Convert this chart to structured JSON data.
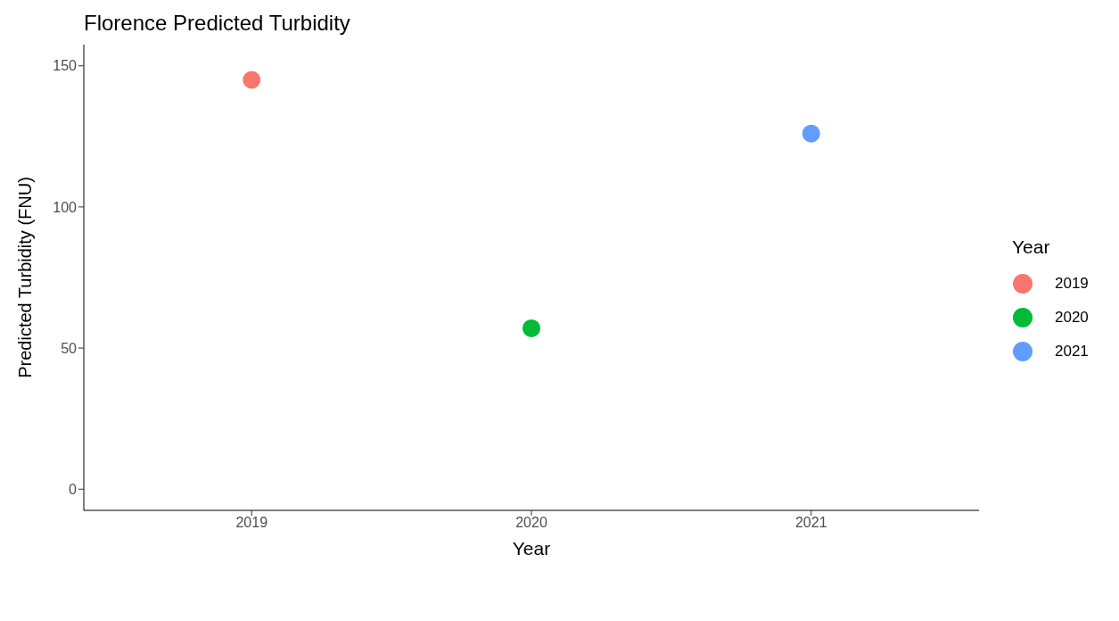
{
  "chart_data": {
    "type": "scatter",
    "title": "Florence Predicted Turbidity",
    "xlabel": "Year",
    "ylabel": "Predicted Turbidity (FNU)",
    "legend_title": "Year",
    "categories": [
      "2019",
      "2020",
      "2021"
    ],
    "series": [
      {
        "name": "2019",
        "color": "#f8766d",
        "values": [
          145,
          null,
          null
        ]
      },
      {
        "name": "2020",
        "color": "#00ba38",
        "values": [
          null,
          57,
          null
        ]
      },
      {
        "name": "2021",
        "color": "#619cff",
        "values": [
          null,
          null,
          126
        ]
      }
    ],
    "ylim": [
      -7.5,
      157.5
    ],
    "yticks": [
      0,
      50,
      100,
      150
    ],
    "grid": false,
    "legend": "right",
    "marker": "circle"
  }
}
